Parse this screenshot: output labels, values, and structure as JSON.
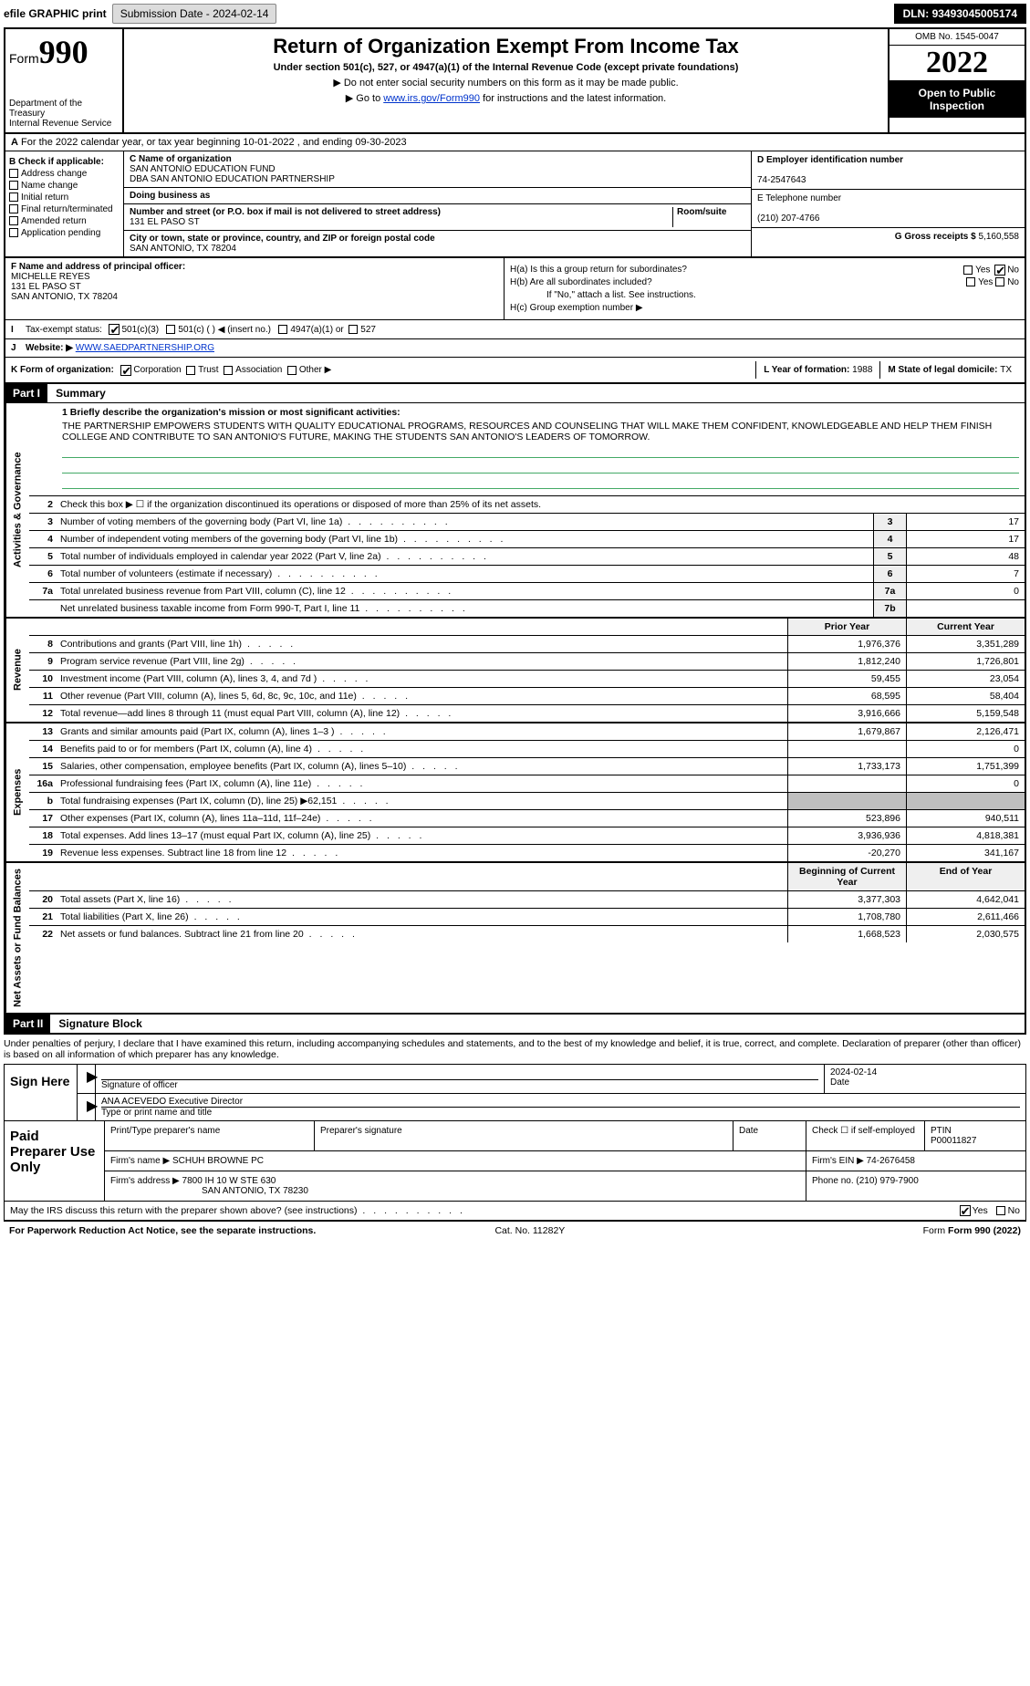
{
  "topbar": {
    "efile": "efile GRAPHIC print",
    "subdate_label": "Submission Date - ",
    "subdate": "2024-02-14",
    "dln_label": "DLN: ",
    "dln": "93493045005174"
  },
  "header": {
    "form_word": "Form",
    "form_num": "990",
    "dept": "Department of the Treasury",
    "irs": "Internal Revenue Service",
    "title": "Return of Organization Exempt From Income Tax",
    "sub": "Under section 501(c), 527, or 4947(a)(1) of the Internal Revenue Code (except private foundations)",
    "note1": "▶ Do not enter social security numbers on this form as it may be made public.",
    "note2a": "▶ Go to ",
    "note2_link": "www.irs.gov/Form990",
    "note2b": " for instructions and the latest information.",
    "omb": "OMB No. 1545-0047",
    "year": "2022",
    "open": "Open to Public Inspection"
  },
  "rowA": "For the 2022 calendar year, or tax year beginning 10-01-2022   , and ending 09-30-2023",
  "sectionB": {
    "b_label": "B Check if applicable:",
    "opts": [
      "Address change",
      "Name change",
      "Initial return",
      "Final return/terminated",
      "Amended return",
      "Application pending"
    ],
    "c_label": "C Name of organization",
    "org1": "SAN ANTONIO EDUCATION FUND",
    "org2": "DBA SAN ANTONIO EDUCATION PARTNERSHIP",
    "dba_label": "Doing business as",
    "addr_label": "Number and street (or P.O. box if mail is not delivered to street address)",
    "room_label": "Room/suite",
    "addr": "131 EL PASO ST",
    "city_label": "City or town, state or province, country, and ZIP or foreign postal code",
    "city": "SAN ANTONIO, TX  78204",
    "d_label": "D Employer identification number",
    "ein": "74-2547643",
    "e_label": "E Telephone number",
    "phone": "(210) 207-4766",
    "g_label": "G Gross receipts $ ",
    "gross": "5,160,558"
  },
  "sectionF": {
    "f_label": "F Name and address of principal officer:",
    "name": "MICHELLE REYES",
    "addr1": "131 EL PASO ST",
    "addr2": "SAN ANTONIO, TX  78204",
    "ha": "H(a)  Is this a group return for subordinates?",
    "hb": "H(b)  Are all subordinates included?",
    "hb_note": "If \"No,\" attach a list. See instructions.",
    "hc": "H(c)  Group exemption number ▶",
    "yes": "Yes",
    "no": "No"
  },
  "taxrow": {
    "i": "I",
    "label": "Tax-exempt status:",
    "o1": "501(c)(3)",
    "o2": "501(c) (  ) ◀ (insert no.)",
    "o3": "4947(a)(1) or",
    "o4": "527"
  },
  "webrow": {
    "j": "J",
    "label": "Website: ▶",
    "url": "WWW.SAEDPARTNERSHIP.ORG"
  },
  "krow": {
    "k": "K Form of organization:",
    "opts": [
      "Corporation",
      "Trust",
      "Association",
      "Other ▶"
    ],
    "l": "L Year of formation: ",
    "lval": "1988",
    "m": "M State of legal domicile: ",
    "mval": "TX"
  },
  "part1": {
    "tag": "Part I",
    "title": "Summary",
    "line1_label": "1 Briefly describe the organization's mission or most significant activities:",
    "mission": "THE PARTNERSHIP EMPOWERS STUDENTS WITH QUALITY EDUCATIONAL PROGRAMS, RESOURCES AND COUNSELING THAT WILL MAKE THEM CONFIDENT, KNOWLEDGEABLE AND HELP THEM FINISH COLLEGE AND CONTRIBUTE TO SAN ANTONIO'S FUTURE, MAKING THE STUDENTS SAN ANTONIO'S LEADERS OF TOMORROW.",
    "line2": "Check this box ▶ ☐  if the organization discontinued its operations or disposed of more than 25% of its net assets.",
    "gov_label": "Activities & Governance",
    "rev_label": "Revenue",
    "exp_label": "Expenses",
    "net_label": "Net Assets or Fund Balances",
    "rows_gov": [
      {
        "n": "3",
        "d": "Number of voting members of the governing body (Part VI, line 1a)",
        "b": "3",
        "v": "17"
      },
      {
        "n": "4",
        "d": "Number of independent voting members of the governing body (Part VI, line 1b)",
        "b": "4",
        "v": "17"
      },
      {
        "n": "5",
        "d": "Total number of individuals employed in calendar year 2022 (Part V, line 2a)",
        "b": "5",
        "v": "48"
      },
      {
        "n": "6",
        "d": "Total number of volunteers (estimate if necessary)",
        "b": "6",
        "v": "7"
      },
      {
        "n": "7a",
        "d": "Total unrelated business revenue from Part VIII, column (C), line 12",
        "b": "7a",
        "v": "0"
      },
      {
        "n": "",
        "d": "Net unrelated business taxable income from Form 990-T, Part I, line 11",
        "b": "7b",
        "v": ""
      }
    ],
    "col_prior": "Prior Year",
    "col_current": "Current Year",
    "rows_rev": [
      {
        "n": "8",
        "d": "Contributions and grants (Part VIII, line 1h)",
        "p": "1,976,376",
        "c": "3,351,289"
      },
      {
        "n": "9",
        "d": "Program service revenue (Part VIII, line 2g)",
        "p": "1,812,240",
        "c": "1,726,801"
      },
      {
        "n": "10",
        "d": "Investment income (Part VIII, column (A), lines 3, 4, and 7d )",
        "p": "59,455",
        "c": "23,054"
      },
      {
        "n": "11",
        "d": "Other revenue (Part VIII, column (A), lines 5, 6d, 8c, 9c, 10c, and 11e)",
        "p": "68,595",
        "c": "58,404"
      },
      {
        "n": "12",
        "d": "Total revenue—add lines 8 through 11 (must equal Part VIII, column (A), line 12)",
        "p": "3,916,666",
        "c": "5,159,548"
      }
    ],
    "rows_exp": [
      {
        "n": "13",
        "d": "Grants and similar amounts paid (Part IX, column (A), lines 1–3 )",
        "p": "1,679,867",
        "c": "2,126,471"
      },
      {
        "n": "14",
        "d": "Benefits paid to or for members (Part IX, column (A), line 4)",
        "p": "",
        "c": "0"
      },
      {
        "n": "15",
        "d": "Salaries, other compensation, employee benefits (Part IX, column (A), lines 5–10)",
        "p": "1,733,173",
        "c": "1,751,399"
      },
      {
        "n": "16a",
        "d": "Professional fundraising fees (Part IX, column (A), line 11e)",
        "p": "",
        "c": "0"
      },
      {
        "n": "b",
        "d": "Total fundraising expenses (Part IX, column (D), line 25) ▶62,151",
        "p": "",
        "c": "",
        "shade": true
      },
      {
        "n": "17",
        "d": "Other expenses (Part IX, column (A), lines 11a–11d, 11f–24e)",
        "p": "523,896",
        "c": "940,511"
      },
      {
        "n": "18",
        "d": "Total expenses. Add lines 13–17 (must equal Part IX, column (A), line 25)",
        "p": "3,936,936",
        "c": "4,818,381"
      },
      {
        "n": "19",
        "d": "Revenue less expenses. Subtract line 18 from line 12",
        "p": "-20,270",
        "c": "341,167"
      }
    ],
    "col_begin": "Beginning of Current Year",
    "col_end": "End of Year",
    "rows_net": [
      {
        "n": "20",
        "d": "Total assets (Part X, line 16)",
        "p": "3,377,303",
        "c": "4,642,041"
      },
      {
        "n": "21",
        "d": "Total liabilities (Part X, line 26)",
        "p": "1,708,780",
        "c": "2,611,466"
      },
      {
        "n": "22",
        "d": "Net assets or fund balances. Subtract line 21 from line 20",
        "p": "1,668,523",
        "c": "2,030,575"
      }
    ]
  },
  "part2": {
    "tag": "Part II",
    "title": "Signature Block",
    "decl": "Under penalties of perjury, I declare that I have examined this return, including accompanying schedules and statements, and to the best of my knowledge and belief, it is true, correct, and complete. Declaration of preparer (other than officer) is based on all information of which preparer has any knowledge.",
    "sign_here": "Sign Here",
    "sig_officer": "Signature of officer",
    "date_lbl": "Date",
    "sig_date": "2024-02-14",
    "name_title": "ANA ACEVEDO  Executive Director",
    "type_lbl": "Type or print name and title",
    "paid": "Paid Preparer Use Only",
    "pt_name_lbl": "Print/Type preparer's name",
    "pt_sig_lbl": "Preparer's signature",
    "pt_date_lbl": "Date",
    "pt_check_lbl": "Check ☐ if self-employed",
    "ptin_lbl": "PTIN",
    "ptin": "P00011827",
    "firm_name_lbl": "Firm's name   ▶ ",
    "firm_name": "SCHUH BROWNE PC",
    "firm_ein_lbl": "Firm's EIN ▶ ",
    "firm_ein": "74-2676458",
    "firm_addr_lbl": "Firm's address ▶ ",
    "firm_addr1": "7800 IH 10 W STE 630",
    "firm_addr2": "SAN ANTONIO, TX  78230",
    "firm_phone_lbl": "Phone no. ",
    "firm_phone": "(210) 979-7900",
    "discuss": "May the IRS discuss this return with the preparer shown above? (see instructions)",
    "yes": "Yes",
    "no": "No"
  },
  "footer": {
    "pra": "For Paperwork Reduction Act Notice, see the separate instructions.",
    "cat": "Cat. No. 11282Y",
    "form": "Form 990 (2022)"
  }
}
